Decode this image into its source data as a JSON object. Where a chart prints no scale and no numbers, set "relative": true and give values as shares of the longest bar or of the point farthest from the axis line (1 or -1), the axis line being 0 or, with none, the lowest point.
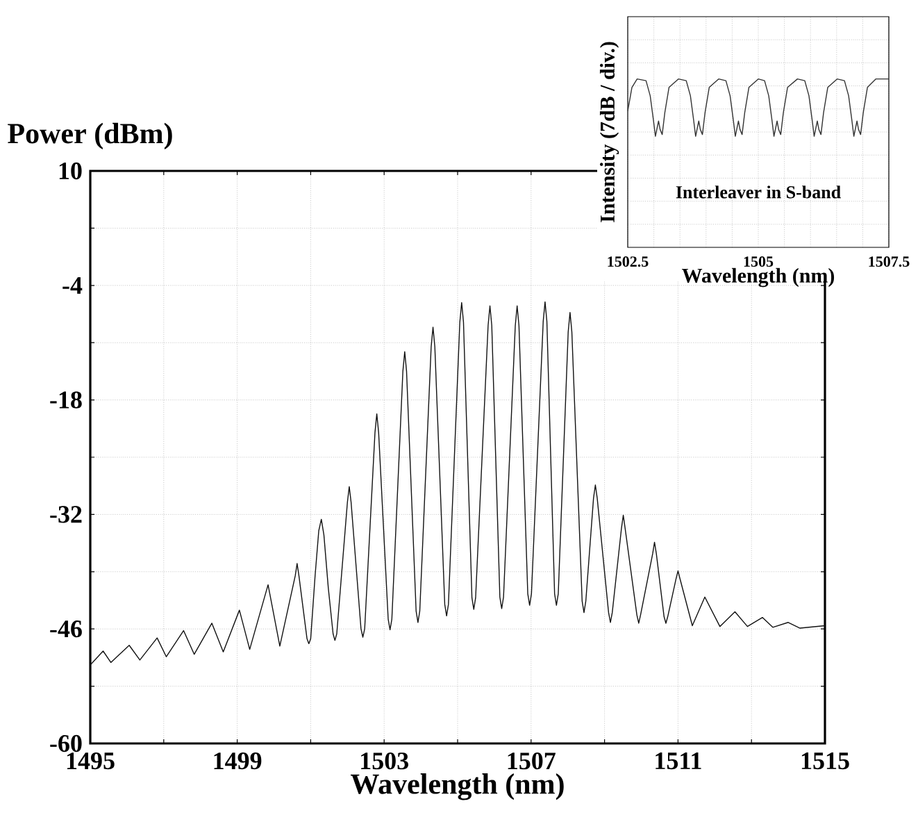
{
  "chart_data": [
    {
      "type": "line",
      "xlabel": "Wavelength (nm)",
      "ylabel": "Power (dBm)",
      "xlim": [
        1495,
        1515
      ],
      "ylim": [
        -60,
        10
      ],
      "xticks": [
        1495,
        {
          "value": 1497,
          "label": null
        },
        1499,
        {
          "value": 1501,
          "label": null
        },
        1503,
        {
          "value": 1505,
          "label": null
        },
        1507,
        {
          "value": 1509,
          "label": null
        },
        1511,
        {
          "value": 1513,
          "label": null
        },
        1515
      ],
      "yticks": [
        -60,
        {
          "value": -53,
          "label": null
        },
        -46,
        {
          "value": -39,
          "label": null
        },
        -32,
        {
          "value": -25,
          "label": null
        },
        -18,
        {
          "value": -11,
          "label": null
        },
        -4,
        {
          "value": 3,
          "label": null
        },
        10
      ],
      "grid": true,
      "series": [
        {
          "color": "#111111",
          "x": [
            1495.0,
            1495.35,
            1495.56,
            1496.06,
            1496.35,
            1496.82,
            1497.07,
            1497.54,
            1497.83,
            1498.31,
            1498.62,
            1499.06,
            1499.34,
            1499.84,
            1500.16,
            1500.58,
            1500.63,
            1500.68,
            1500.9,
            1500.95,
            1501.0,
            1501.12,
            1501.22,
            1501.29,
            1501.36,
            1501.48,
            1501.61,
            1501.66,
            1501.71,
            1502.0,
            1502.05,
            1502.1,
            1502.37,
            1502.42,
            1502.47,
            1502.75,
            1502.8,
            1502.85,
            1503.11,
            1503.16,
            1503.21,
            1503.51,
            1503.56,
            1503.61,
            1503.87,
            1503.92,
            1503.97,
            1504.28,
            1504.33,
            1504.38,
            1504.65,
            1504.7,
            1504.75,
            1505.06,
            1505.11,
            1505.16,
            1505.39,
            1505.44,
            1505.49,
            1505.83,
            1505.88,
            1505.93,
            1506.15,
            1506.2,
            1506.25,
            1506.57,
            1506.62,
            1506.67,
            1506.91,
            1506.96,
            1507.01,
            1507.33,
            1507.38,
            1507.43,
            1507.64,
            1507.69,
            1507.74,
            1508.01,
            1508.06,
            1508.11,
            1508.39,
            1508.44,
            1508.49,
            1508.7,
            1508.75,
            1508.8,
            1509.11,
            1509.16,
            1509.21,
            1509.46,
            1509.51,
            1509.56,
            1509.88,
            1509.93,
            1509.98,
            1510.31,
            1510.36,
            1510.41,
            1510.62,
            1510.67,
            1510.72,
            1510.95,
            1511.0,
            1511.05,
            1511.39,
            1511.73,
            1512.14,
            1512.55,
            1512.89,
            1513.3,
            1513.58,
            1514.0,
            1514.32,
            1515.0
          ],
          "values": [
            -50.4,
            -48.7,
            -50.1,
            -48.0,
            -49.8,
            -47.1,
            -49.4,
            -46.2,
            -49.1,
            -45.3,
            -48.8,
            -43.7,
            -48.5,
            -40.6,
            -48.1,
            -39.5,
            -38.0,
            -39.5,
            -47.2,
            -47.8,
            -47.2,
            -39.5,
            -34.0,
            -32.6,
            -34.5,
            -41.0,
            -46.6,
            -47.4,
            -46.6,
            -30.5,
            -28.6,
            -30.5,
            -46.0,
            -47.0,
            -46.0,
            -22.0,
            -19.7,
            -22.0,
            -44.8,
            -46.1,
            -44.8,
            -14.5,
            -12.1,
            -14.5,
            -43.8,
            -45.2,
            -43.8,
            -11.5,
            -9.1,
            -11.5,
            -43.0,
            -44.4,
            -43.0,
            -8.5,
            -6.1,
            -8.5,
            -42.2,
            -43.6,
            -42.2,
            -8.9,
            -6.5,
            -8.9,
            -42.1,
            -43.5,
            -42.1,
            -8.9,
            -6.5,
            -8.9,
            -41.7,
            -43.1,
            -41.7,
            -8.4,
            -6.0,
            -8.4,
            -41.7,
            -43.1,
            -41.7,
            -9.7,
            -7.3,
            -9.7,
            -42.6,
            -44.0,
            -42.6,
            -30.0,
            -28.4,
            -30.0,
            -44.0,
            -45.2,
            -44.0,
            -33.7,
            -32.1,
            -33.7,
            -44.3,
            -45.3,
            -44.3,
            -36.8,
            -35.4,
            -36.8,
            -44.5,
            -45.3,
            -44.5,
            -39.8,
            -38.9,
            -39.8,
            -45.6,
            -42.1,
            -45.7,
            -43.9,
            -45.7,
            -44.6,
            -45.8,
            -45.2,
            -45.9,
            -45.6
          ]
        }
      ]
    },
    {
      "type": "line",
      "relative": true,
      "xlabel": "Wavelength (nm)",
      "ylabel": "Intensity (7dB / div.)",
      "annotations": [
        "Interleaver in S-band"
      ],
      "xlim": [
        1502.5,
        1507.5
      ],
      "xticks": [
        1502.5,
        {
          "value": 1503,
          "label": null
        },
        {
          "value": 1503.5,
          "label": null
        },
        {
          "value": 1504,
          "label": null
        },
        {
          "value": 1504.5,
          "label": null
        },
        1505,
        {
          "value": 1505.5,
          "label": null
        },
        {
          "value": 1506,
          "label": null
        },
        {
          "value": 1506.5,
          "label": null
        },
        {
          "value": 1507,
          "label": null
        },
        1507.5
      ],
      "grid": true,
      "series": [
        {
          "color": "#333333",
          "x": [
            1502.5,
            1502.58,
            1502.68,
            1502.85,
            1502.93,
            1502.99,
            1503.03,
            1503.07,
            1503.09,
            1503.12,
            1503.16,
            1503.21,
            1503.29,
            1503.47,
            1503.62,
            1503.7,
            1503.76,
            1503.8,
            1503.84,
            1503.86,
            1503.89,
            1503.93,
            1503.98,
            1504.06,
            1504.24,
            1504.38,
            1504.46,
            1504.52,
            1504.56,
            1504.6,
            1504.62,
            1504.65,
            1504.69,
            1504.74,
            1504.82,
            1505.0,
            1505.12,
            1505.2,
            1505.26,
            1505.3,
            1505.34,
            1505.36,
            1505.39,
            1505.43,
            1505.48,
            1505.56,
            1505.75,
            1505.89,
            1505.97,
            1506.03,
            1506.07,
            1506.11,
            1506.13,
            1506.16,
            1506.2,
            1506.25,
            1506.33,
            1506.51,
            1506.65,
            1506.73,
            1506.79,
            1506.83,
            1506.87,
            1506.89,
            1506.92,
            1506.96,
            1507.01,
            1507.09,
            1507.25,
            1507.5
          ],
          "values": [
            0.81,
            0.95,
            1.0,
            0.99,
            0.9,
            0.76,
            0.66,
            0.72,
            0.75,
            0.7,
            0.67,
            0.8,
            0.95,
            1.0,
            0.99,
            0.9,
            0.76,
            0.66,
            0.72,
            0.75,
            0.7,
            0.67,
            0.8,
            0.95,
            1.0,
            0.99,
            0.9,
            0.76,
            0.66,
            0.72,
            0.75,
            0.7,
            0.67,
            0.8,
            0.95,
            1.0,
            0.99,
            0.9,
            0.76,
            0.66,
            0.72,
            0.75,
            0.7,
            0.67,
            0.8,
            0.95,
            1.0,
            0.99,
            0.9,
            0.76,
            0.66,
            0.72,
            0.75,
            0.7,
            0.67,
            0.8,
            0.95,
            1.0,
            0.99,
            0.9,
            0.76,
            0.66,
            0.72,
            0.75,
            0.7,
            0.67,
            0.8,
            0.95,
            1.0,
            1.0
          ]
        }
      ]
    }
  ]
}
